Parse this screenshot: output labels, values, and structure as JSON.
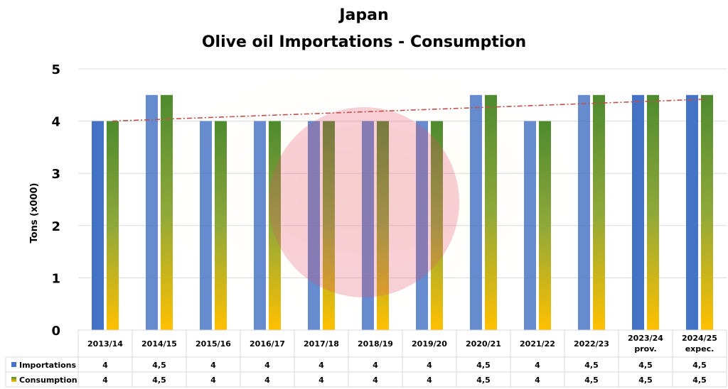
{
  "chart_data": {
    "type": "bar",
    "title": [
      "Japan",
      "Olive oil Importations - Consumption"
    ],
    "ylabel": "Tons (x000)",
    "xlabel": "",
    "ylim": [
      0,
      5
    ],
    "yticks": [
      "0",
      "1",
      "2",
      "3",
      "4",
      "5"
    ],
    "grid": true,
    "categories": [
      [
        "2013/14"
      ],
      [
        "2014/15"
      ],
      [
        "2015/16"
      ],
      [
        "2016/17"
      ],
      [
        "2017/18"
      ],
      [
        "2018/19"
      ],
      [
        "2019/20"
      ],
      [
        "2020/21"
      ],
      [
        "2021/22"
      ],
      [
        "2022/23"
      ],
      [
        "2023/24",
        "prov."
      ],
      [
        "2024/25",
        "expec."
      ]
    ],
    "series": [
      {
        "name": "Importations",
        "values": [
          4,
          4.5,
          4,
          4,
          4,
          4,
          4,
          4.5,
          4,
          4.5,
          4.5,
          4.5
        ],
        "labels": [
          "4",
          "4,5",
          "4",
          "4",
          "4",
          "4",
          "4",
          "4,5",
          "4",
          "4,5",
          "4,5",
          "4,5"
        ],
        "color": "#4472C4"
      },
      {
        "name": "Consumption",
        "values": [
          4,
          4.5,
          4,
          4,
          4,
          4,
          4,
          4.5,
          4,
          4.5,
          4.5,
          4.5
        ],
        "labels": [
          "4",
          "4,5",
          "4",
          "4",
          "4",
          "4",
          "4",
          "4,5",
          "4",
          "4,5",
          "4,5",
          "4,5"
        ],
        "color_top": "#4E8A2E",
        "color_bottom": "#FFC000"
      }
    ],
    "trendline": {
      "series": "Consumption",
      "type": "linear",
      "start": 4.0,
      "end": 4.42,
      "color": "#C0504D"
    },
    "legend": "table-left",
    "data_table": true
  }
}
